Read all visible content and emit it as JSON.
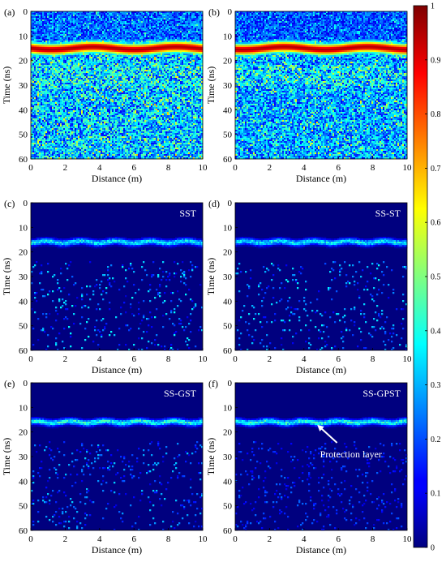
{
  "colors": {
    "background": "#ffffff",
    "map_low": "#00007f",
    "map_mid": "#00ffff",
    "map_high": "#7f0000",
    "annotation": "#ffffff"
  },
  "colorscale": "jet",
  "colorbar": {
    "range": [
      0,
      1
    ],
    "ticks": [
      "0",
      "0.1",
      "0.2",
      "0.3",
      "0.4",
      "0.5",
      "0.6",
      "0.7",
      "0.8",
      "0.9",
      "1"
    ],
    "position": "right"
  },
  "chart_data": [
    {
      "type": "heatmap",
      "panel": "(a)",
      "method_label": "",
      "xlabel": "Distance (m)",
      "ylabel": "Time (ns)",
      "xlim": [
        0,
        10
      ],
      "ylim": [
        60,
        0
      ],
      "xticks": [
        "0",
        "2",
        "4",
        "6",
        "8",
        "10"
      ],
      "yticks": [
        "0",
        "10",
        "20",
        "30",
        "40",
        "50",
        "60"
      ],
      "noise_level": 0.35,
      "features": [
        {
          "kind": "strong_horizontal_reflection",
          "time_ns": 15,
          "amplitude": 0.95
        },
        {
          "kind": "weak_reflections",
          "time_ns_range": [
            22,
            30
          ],
          "amplitude": 0.55
        }
      ]
    },
    {
      "type": "heatmap",
      "panel": "(b)",
      "method_label": "",
      "xlabel": "Distance (m)",
      "ylabel": "Time (ns)",
      "xlim": [
        0,
        10
      ],
      "ylim": [
        60,
        0
      ],
      "xticks": [
        "0",
        "2",
        "4",
        "6",
        "8",
        "10"
      ],
      "yticks": [
        "0",
        "10",
        "20",
        "30",
        "40",
        "50",
        "60"
      ],
      "noise_level": 0.3,
      "features": [
        {
          "kind": "strong_horizontal_reflection",
          "time_ns": 15,
          "amplitude": 0.95
        },
        {
          "kind": "weak_reflections",
          "time_ns_range": [
            22,
            30
          ],
          "amplitude": 0.6
        }
      ]
    },
    {
      "type": "heatmap",
      "panel": "(c)",
      "method_label": "SST",
      "xlabel": "Distance (m)",
      "ylabel": "Time (ns)",
      "xlim": [
        0,
        10
      ],
      "ylim": [
        60,
        0
      ],
      "xticks": [
        "0",
        "2",
        "4",
        "6",
        "8",
        "10"
      ],
      "yticks": [
        "0",
        "10",
        "20",
        "30",
        "40",
        "50",
        "60"
      ],
      "noise_level": 0.1,
      "features": [
        {
          "kind": "thin_horizontal_reflection",
          "time_ns": 16,
          "amplitude": 0.45
        },
        {
          "kind": "sparse_speckle",
          "time_ns_range": [
            24,
            60
          ],
          "amplitude": 0.3
        }
      ]
    },
    {
      "type": "heatmap",
      "panel": "(d)",
      "method_label": "SS-ST",
      "xlabel": "Distance (m)",
      "ylabel": "Time (ns)",
      "xlim": [
        0,
        10
      ],
      "ylim": [
        60,
        0
      ],
      "xticks": [
        "0",
        "2",
        "4",
        "6",
        "8",
        "10"
      ],
      "yticks": [
        "0",
        "10",
        "20",
        "30",
        "40",
        "50",
        "60"
      ],
      "noise_level": 0.1,
      "features": [
        {
          "kind": "thin_horizontal_reflection",
          "time_ns": 16,
          "amplitude": 0.45
        },
        {
          "kind": "sparse_speckle",
          "time_ns_range": [
            24,
            60
          ],
          "amplitude": 0.3
        }
      ]
    },
    {
      "type": "heatmap",
      "panel": "(e)",
      "method_label": "SS-GST",
      "xlabel": "Distance (m)",
      "ylabel": "Time (ns)",
      "xlim": [
        0,
        10
      ],
      "ylim": [
        60,
        0
      ],
      "xticks": [
        "0",
        "2",
        "4",
        "6",
        "8",
        "10"
      ],
      "yticks": [
        "0",
        "10",
        "20",
        "30",
        "40",
        "50",
        "60"
      ],
      "noise_level": 0.08,
      "features": [
        {
          "kind": "thin_horizontal_reflection",
          "time_ns": 16,
          "amplitude": 0.5
        },
        {
          "kind": "sparse_speckle",
          "time_ns_range": [
            24,
            60
          ],
          "amplitude": 0.25
        }
      ]
    },
    {
      "type": "heatmap",
      "panel": "(f)",
      "method_label": "SS-GPST",
      "xlabel": "Distance (m)",
      "ylabel": "Time (ns)",
      "xlim": [
        0,
        10
      ],
      "ylim": [
        60,
        0
      ],
      "xticks": [
        "0",
        "2",
        "4",
        "6",
        "8",
        "10"
      ],
      "yticks": [
        "0",
        "10",
        "20",
        "30",
        "40",
        "50",
        "60"
      ],
      "noise_level": 0.05,
      "features": [
        {
          "kind": "thin_horizontal_reflection",
          "time_ns": 16,
          "amplitude": 0.5
        },
        {
          "kind": "sparse_speckle",
          "time_ns_range": [
            24,
            60
          ],
          "amplitude": 0.15
        }
      ],
      "annotation": {
        "text": "Protection layer",
        "arrow_target": {
          "x": 4.7,
          "y": 16.5
        }
      }
    }
  ]
}
